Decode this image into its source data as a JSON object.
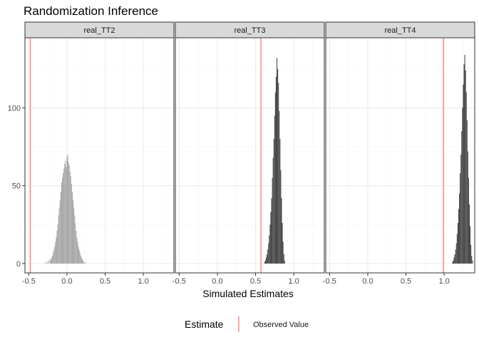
{
  "chart_data": {
    "type": "bar",
    "title": "Randomization Inference",
    "xlabel": "Simulated Estimates",
    "ylabel": "",
    "xlim": [
      -0.55,
      1.4
    ],
    "ylim": [
      -6,
      145
    ],
    "x_ticks": [
      -0.5,
      0.0,
      0.5,
      1.0
    ],
    "x_tick_labels": [
      "-0.5",
      "0.0",
      "0.5",
      "1.0"
    ],
    "y_ticks": [
      0,
      50,
      100
    ],
    "y_tick_labels": [
      "0",
      "50",
      "100"
    ],
    "grid": true,
    "legend": {
      "position": "bottom",
      "title": "Estimate",
      "label": "Observed Value"
    },
    "bin_width": 0.01,
    "colors": {
      "observed_line": "#F8766D",
      "panel_border": "#333333",
      "strip_fill": "#D9D9D9",
      "grid_major": "#EBEBEB",
      "grid_minor": "#F5F5F5"
    },
    "panels": [
      {
        "label": "real_TT2",
        "observed": -0.48,
        "bar_color": "#A8A8A8",
        "bins_x": [
          -0.28,
          -0.26,
          -0.24,
          -0.22,
          -0.21,
          -0.2,
          -0.19,
          -0.18,
          -0.17,
          -0.16,
          -0.15,
          -0.14,
          -0.13,
          -0.12,
          -0.11,
          -0.1,
          -0.09,
          -0.08,
          -0.07,
          -0.06,
          -0.05,
          -0.04,
          -0.03,
          -0.02,
          -0.01,
          0.0,
          0.01,
          0.02,
          0.03,
          0.04,
          0.05,
          0.06,
          0.07,
          0.08,
          0.09,
          0.1,
          0.11,
          0.12,
          0.13,
          0.14,
          0.15,
          0.16,
          0.17,
          0.18,
          0.19,
          0.2,
          0.21,
          0.22,
          0.24
        ],
        "bins_y": [
          1,
          1,
          2,
          3,
          2,
          4,
          5,
          7,
          9,
          11,
          14,
          17,
          21,
          25,
          31,
          36,
          41,
          46,
          52,
          55,
          58,
          61,
          64,
          66,
          62,
          68,
          70,
          65,
          63,
          59,
          56,
          51,
          46,
          41,
          36,
          31,
          26,
          21,
          17,
          14,
          11,
          9,
          7,
          5,
          4,
          3,
          2,
          1,
          1
        ]
      },
      {
        "label": "real_TT3",
        "observed": 0.57,
        "bar_color": "#474747",
        "bins_x": [
          0.62,
          0.63,
          0.64,
          0.65,
          0.66,
          0.67,
          0.68,
          0.69,
          0.7,
          0.71,
          0.72,
          0.73,
          0.74,
          0.75,
          0.76,
          0.77,
          0.78,
          0.79,
          0.8,
          0.81,
          0.82,
          0.83,
          0.84,
          0.85,
          0.86,
          0.87,
          0.88
        ],
        "bins_y": [
          1,
          2,
          4,
          6,
          9,
          13,
          18,
          25,
          33,
          42,
          55,
          68,
          80,
          95,
          110,
          120,
          132,
          125,
          116,
          98,
          80,
          60,
          42,
          26,
          14,
          6,
          2
        ]
      },
      {
        "label": "real_TT4",
        "observed": 0.99,
        "bar_color": "#474747",
        "bins_x": [
          1.11,
          1.12,
          1.13,
          1.14,
          1.15,
          1.16,
          1.17,
          1.18,
          1.19,
          1.2,
          1.21,
          1.22,
          1.23,
          1.24,
          1.25,
          1.26,
          1.27,
          1.28,
          1.29,
          1.3,
          1.31,
          1.32,
          1.33,
          1.34,
          1.35,
          1.36,
          1.37
        ],
        "bins_y": [
          1,
          2,
          4,
          6,
          9,
          13,
          19,
          26,
          35,
          45,
          58,
          70,
          85,
          100,
          115,
          128,
          134,
          124,
          110,
          92,
          72,
          55,
          38,
          24,
          12,
          5,
          2
        ]
      }
    ]
  }
}
